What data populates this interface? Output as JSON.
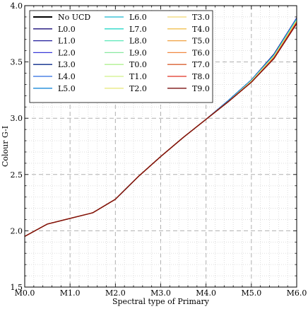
{
  "chart_data": {
    "type": "line",
    "xlabel": "Spectral type of Primary",
    "ylabel": "Colour G-I",
    "xlim": [
      0,
      6
    ],
    "ylim": [
      1.5,
      4.0
    ],
    "x_ticks": [
      {
        "value": 0,
        "label": "M0.0"
      },
      {
        "value": 1,
        "label": "M1.0"
      },
      {
        "value": 2,
        "label": "M2.0"
      },
      {
        "value": 3,
        "label": "M3.0"
      },
      {
        "value": 4,
        "label": "M4.0"
      },
      {
        "value": 5,
        "label": "M5.0"
      },
      {
        "value": 6,
        "label": "M6.0"
      }
    ],
    "y_ticks": [
      {
        "value": 1.5,
        "label": "1.5"
      },
      {
        "value": 2.0,
        "label": "2.0"
      },
      {
        "value": 2.5,
        "label": "2.5"
      },
      {
        "value": 3.0,
        "label": "3.0"
      },
      {
        "value": 3.5,
        "label": "3.5"
      },
      {
        "value": 4.0,
        "label": "4.0"
      }
    ],
    "grid": true,
    "legend_position": "top-left",
    "x": [
      0,
      0.5,
      1.0,
      1.5,
      2.0,
      2.5,
      3.0,
      3.5,
      4.0,
      4.5,
      5.0,
      5.5,
      6.0
    ],
    "base_values": [
      1.95,
      2.06,
      2.11,
      2.16,
      2.28,
      2.48,
      2.66,
      2.83,
      2.99,
      3.15,
      3.32,
      3.54,
      3.86
    ],
    "series": [
      {
        "name": "No UCD",
        "color": "#000000",
        "values": [
          1.95,
          2.06,
          2.11,
          2.16,
          2.28,
          2.48,
          2.66,
          2.83,
          2.99,
          3.15,
          3.33,
          3.55,
          3.87
        ]
      },
      {
        "name": "L0.0",
        "color": "#1a0d7a",
        "values": [
          1.95,
          2.06,
          2.11,
          2.16,
          2.28,
          2.48,
          2.66,
          2.83,
          2.99,
          3.16,
          3.34,
          3.57,
          3.89
        ]
      },
      {
        "name": "L1.0",
        "color": "#1f1a9a",
        "values": [
          1.95,
          2.06,
          2.11,
          2.16,
          2.28,
          2.48,
          2.66,
          2.83,
          2.99,
          3.16,
          3.34,
          3.57,
          3.89
        ]
      },
      {
        "name": "L2.0",
        "color": "#3a3ad8",
        "values": [
          1.95,
          2.06,
          2.11,
          2.16,
          2.28,
          2.48,
          2.66,
          2.83,
          2.99,
          3.16,
          3.34,
          3.56,
          3.89
        ]
      },
      {
        "name": "L3.0",
        "color": "#0a2a8a",
        "values": [
          1.95,
          2.06,
          2.11,
          2.16,
          2.28,
          2.48,
          2.66,
          2.83,
          2.99,
          3.16,
          3.34,
          3.56,
          3.88
        ]
      },
      {
        "name": "L4.0",
        "color": "#2a6ae0",
        "values": [
          1.95,
          2.06,
          2.11,
          2.16,
          2.28,
          2.48,
          2.66,
          2.83,
          2.99,
          3.16,
          3.34,
          3.56,
          3.88
        ]
      },
      {
        "name": "L5.0",
        "color": "#1a8ad8",
        "values": [
          1.95,
          2.06,
          2.11,
          2.16,
          2.28,
          2.48,
          2.66,
          2.83,
          2.99,
          3.16,
          3.34,
          3.56,
          3.88
        ]
      },
      {
        "name": "L6.0",
        "color": "#1ab8d0",
        "values": [
          1.95,
          2.06,
          2.11,
          2.16,
          2.28,
          2.48,
          2.66,
          2.83,
          2.99,
          3.15,
          3.33,
          3.56,
          3.88
        ]
      },
      {
        "name": "L7.0",
        "color": "#2ad8c8",
        "values": [
          1.95,
          2.06,
          2.11,
          2.16,
          2.28,
          2.48,
          2.66,
          2.83,
          2.99,
          3.15,
          3.33,
          3.56,
          3.88
        ]
      },
      {
        "name": "L8.0",
        "color": "#5ae8b8",
        "values": [
          1.95,
          2.06,
          2.11,
          2.16,
          2.28,
          2.48,
          2.66,
          2.83,
          2.99,
          3.15,
          3.33,
          3.55,
          3.87
        ]
      },
      {
        "name": "L9.0",
        "color": "#8ae8a0",
        "values": [
          1.95,
          2.06,
          2.11,
          2.16,
          2.28,
          2.48,
          2.66,
          2.83,
          2.99,
          3.15,
          3.33,
          3.55,
          3.87
        ]
      },
      {
        "name": "T0.0",
        "color": "#b0f090",
        "values": [
          1.95,
          2.06,
          2.11,
          2.16,
          2.28,
          2.48,
          2.66,
          2.83,
          2.99,
          3.15,
          3.33,
          3.55,
          3.87
        ]
      },
      {
        "name": "T1.0",
        "color": "#d0f088",
        "values": [
          1.95,
          2.06,
          2.11,
          2.16,
          2.28,
          2.48,
          2.66,
          2.83,
          2.99,
          3.15,
          3.33,
          3.55,
          3.86
        ]
      },
      {
        "name": "T2.0",
        "color": "#e8e880",
        "values": [
          1.95,
          2.06,
          2.11,
          2.16,
          2.28,
          2.48,
          2.66,
          2.83,
          2.99,
          3.15,
          3.33,
          3.55,
          3.86
        ]
      },
      {
        "name": "T3.0",
        "color": "#f0d870",
        "values": [
          1.95,
          2.06,
          2.11,
          2.16,
          2.28,
          2.48,
          2.66,
          2.83,
          2.99,
          3.15,
          3.32,
          3.54,
          3.86
        ]
      },
      {
        "name": "T4.0",
        "color": "#f0c050",
        "values": [
          1.95,
          2.06,
          2.11,
          2.16,
          2.28,
          2.48,
          2.66,
          2.83,
          2.99,
          3.15,
          3.32,
          3.54,
          3.86
        ]
      },
      {
        "name": "T5.0",
        "color": "#f0a040",
        "values": [
          1.95,
          2.06,
          2.11,
          2.16,
          2.28,
          2.48,
          2.66,
          2.83,
          2.99,
          3.15,
          3.32,
          3.54,
          3.85
        ]
      },
      {
        "name": "T6.0",
        "color": "#f08840",
        "values": [
          1.95,
          2.06,
          2.11,
          2.16,
          2.28,
          2.48,
          2.66,
          2.83,
          2.99,
          3.15,
          3.32,
          3.54,
          3.85
        ]
      },
      {
        "name": "T7.0",
        "color": "#d86030",
        "values": [
          1.95,
          2.06,
          2.11,
          2.16,
          2.28,
          2.48,
          2.66,
          2.83,
          2.99,
          3.15,
          3.32,
          3.54,
          3.85
        ]
      },
      {
        "name": "T8.0",
        "color": "#e03020",
        "values": [
          1.95,
          2.06,
          2.11,
          2.16,
          2.28,
          2.48,
          2.66,
          2.83,
          2.99,
          3.15,
          3.32,
          3.53,
          3.85
        ]
      },
      {
        "name": "T9.0",
        "color": "#7a1010",
        "values": [
          1.95,
          2.06,
          2.11,
          2.16,
          2.28,
          2.48,
          2.66,
          2.83,
          2.99,
          3.15,
          3.32,
          3.53,
          3.84
        ]
      }
    ]
  }
}
